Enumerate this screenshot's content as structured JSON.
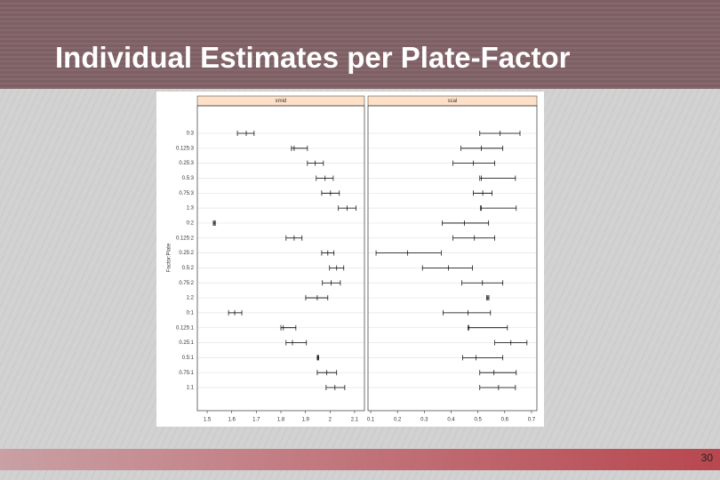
{
  "slide": {
    "title": "Individual Estimates per Plate-Factor",
    "page_number": "30"
  },
  "chart_data": {
    "type": "interval",
    "ylabel": "Factor:Plate",
    "categories": [
      "0:3",
      "0.125:3",
      "0.25:3",
      "0.5:3",
      "0.75:3",
      "1:3",
      "0:2",
      "0.125:2",
      "0.25:2",
      "0.5:2",
      "0.75:2",
      "1:2",
      "0:1",
      "0.125:1",
      "0.25:1",
      "0.5:1",
      "0.75:1",
      "1:1"
    ],
    "panels": [
      {
        "name": "xmid",
        "xlim": [
          1.46,
          2.14
        ],
        "xticks": [
          1.5,
          1.6,
          1.7,
          1.8,
          1.9,
          2.0,
          2.1
        ],
        "lower": [
          1.623,
          1.843,
          1.908,
          1.944,
          1.966,
          2.034,
          1.525,
          1.821,
          1.966,
          1.998,
          1.969,
          1.901,
          1.587,
          1.8,
          1.821,
          1.948,
          1.948,
          1.984
        ],
        "values": [
          1.659,
          1.854,
          1.94,
          1.98,
          2.002,
          2.07,
          1.529,
          1.854,
          1.991,
          2.027,
          2.005,
          1.948,
          1.612,
          1.81,
          1.847,
          1.951,
          1.987,
          2.02
        ],
        "upper": [
          1.691,
          1.908,
          1.973,
          2.013,
          2.038,
          2.106,
          1.533,
          1.886,
          2.016,
          2.056,
          2.042,
          1.991,
          1.641,
          1.861,
          1.904,
          1.954,
          2.027,
          2.06
        ]
      },
      {
        "name": "scal",
        "xlim": [
          0.09,
          0.72
        ],
        "xticks": [
          0.1,
          0.2,
          0.3,
          0.4,
          0.5,
          0.6,
          0.7
        ],
        "lower": [
          0.507,
          0.437,
          0.407,
          0.507,
          0.483,
          0.51,
          0.367,
          0.407,
          0.12,
          0.293,
          0.44,
          0.533,
          0.37,
          0.463,
          0.563,
          0.443,
          0.507,
          0.507
        ],
        "values": [
          0.583,
          0.513,
          0.483,
          0.513,
          0.518,
          0.513,
          0.45,
          0.487,
          0.237,
          0.39,
          0.517,
          0.537,
          0.463,
          0.467,
          0.623,
          0.493,
          0.56,
          0.577
        ],
        "upper": [
          0.657,
          0.593,
          0.563,
          0.64,
          0.553,
          0.643,
          0.54,
          0.563,
          0.363,
          0.48,
          0.593,
          0.541,
          0.547,
          0.61,
          0.683,
          0.593,
          0.643,
          0.64
        ]
      }
    ]
  }
}
